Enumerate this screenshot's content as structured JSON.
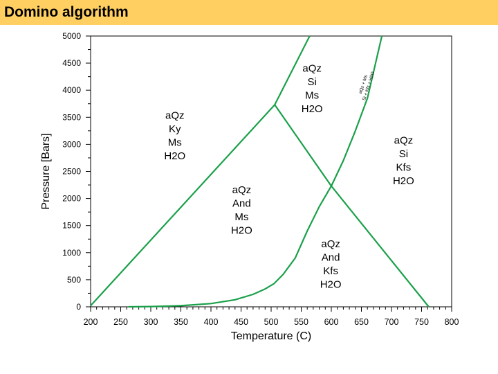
{
  "header": {
    "title": "Domino algorithm"
  },
  "colors": {
    "header_bg": "#ffd061",
    "line": "#1aa04a",
    "axis": "#000000"
  },
  "chart_data": {
    "type": "line",
    "title": "",
    "xlabel": "Temperature (C)",
    "ylabel": "Pressure [Bars]",
    "xlim": [
      200,
      800
    ],
    "ylim": [
      0,
      5000
    ],
    "x_ticks": [
      200,
      250,
      300,
      350,
      400,
      450,
      500,
      550,
      600,
      650,
      700,
      750,
      800
    ],
    "y_ticks": [
      0,
      500,
      1000,
      1500,
      2000,
      2500,
      3000,
      3500,
      4000,
      4500,
      5000
    ],
    "series": [
      {
        "points": [
          [
            200,
            20
          ],
          [
            506,
            3730
          ]
        ]
      },
      {
        "points": [
          [
            506,
            3730
          ],
          [
            564,
            5000
          ]
        ]
      },
      {
        "points": [
          [
            506,
            3730
          ],
          [
            600,
            2230
          ],
          [
            762,
            0
          ]
        ]
      },
      {
        "points": [
          [
            263,
            0
          ],
          [
            300,
            5
          ],
          [
            350,
            20
          ],
          [
            400,
            60
          ],
          [
            440,
            130
          ],
          [
            470,
            230
          ],
          [
            490,
            330
          ],
          [
            505,
            430
          ],
          [
            520,
            600
          ],
          [
            540,
            900
          ],
          [
            560,
            1400
          ],
          [
            580,
            1850
          ],
          [
            600,
            2230
          ],
          [
            620,
            2700
          ],
          [
            640,
            3250
          ],
          [
            660,
            3850
          ],
          [
            684,
            5000
          ]
        ]
      }
    ],
    "field_labels": [
      {
        "x": 340,
        "y": 3470,
        "lines": [
          "aQz",
          "Ky",
          "Ms",
          "H2O"
        ]
      },
      {
        "x": 568,
        "y": 4340,
        "lines": [
          "aQz",
          "Si",
          "Ms",
          "H2O"
        ]
      },
      {
        "x": 720,
        "y": 3010,
        "lines": [
          "aQz",
          "Si",
          "Kfs",
          "H2O"
        ]
      },
      {
        "x": 451,
        "y": 2100,
        "lines": [
          "aQz",
          "And",
          "Ms",
          "H2O"
        ]
      },
      {
        "x": 599,
        "y": 1100,
        "lines": [
          "aQz",
          "And",
          "Kfs",
          "H2O"
        ]
      }
    ],
    "curve_labels": [
      {
        "x": 655,
        "y": 4100,
        "lines": [
          "aQz + Ms",
          "Si + Kfs + H2O"
        ]
      }
    ]
  }
}
